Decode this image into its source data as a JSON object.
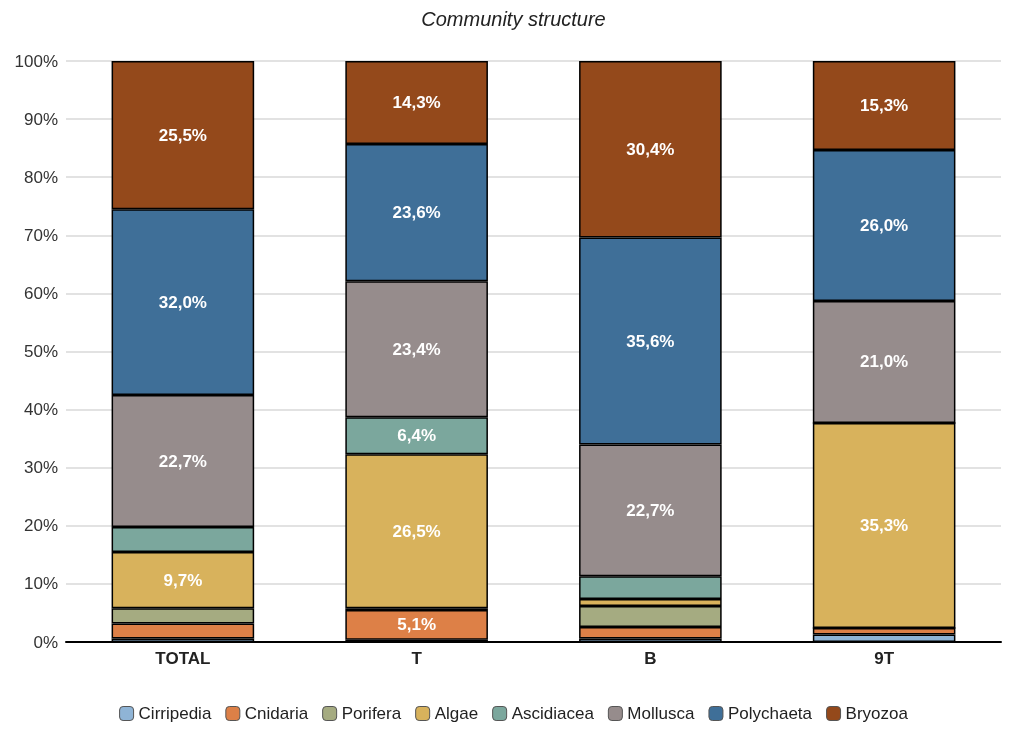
{
  "chart_data": {
    "type": "bar",
    "title": "Community structure",
    "stacked": true,
    "categories": [
      "TOTAL",
      "T",
      "B",
      "9T"
    ],
    "series": [
      {
        "name": "Cirripedia",
        "color": "#8fb4d6",
        "values": [
          0.6,
          0.4,
          0.6,
          1.3
        ],
        "value_labels": [
          null,
          null,
          null,
          null
        ]
      },
      {
        "name": "Cnidaria",
        "color": "#dd8047",
        "values": [
          2.6,
          5.1,
          2.0,
          1.1
        ],
        "value_labels": [
          null,
          "5,1%",
          null,
          null
        ]
      },
      {
        "name": "Porifera",
        "color": "#a5ab81",
        "values": [
          2.6,
          0.3,
          3.6,
          0
        ],
        "value_labels": [
          null,
          null,
          null,
          null
        ]
      },
      {
        "name": "Algae",
        "color": "#d8b25c",
        "values": [
          9.7,
          26.5,
          1.2,
          35.3
        ],
        "value_labels": [
          "9,7%",
          "26,5%",
          null,
          "35,3%"
        ]
      },
      {
        "name": "Ascidiacea",
        "color": "#7ba79d",
        "values": [
          4.3,
          6.4,
          3.9,
          0
        ],
        "value_labels": [
          null,
          "6,4%",
          null,
          null
        ]
      },
      {
        "name": "Mollusca",
        "color": "#968c8c",
        "values": [
          22.7,
          23.4,
          22.7,
          21.0
        ],
        "value_labels": [
          "22,7%",
          "23,4%",
          "22,7%",
          "21,0%"
        ]
      },
      {
        "name": "Polychaeta",
        "color": "#3f6f98",
        "values": [
          32.0,
          23.6,
          35.6,
          26.0
        ],
        "value_labels": [
          "32,0%",
          "23,6%",
          "35,6%",
          "26,0%"
        ]
      },
      {
        "name": "Bryozoa",
        "color": "#94491b",
        "values": [
          25.5,
          14.3,
          30.4,
          15.3
        ],
        "value_labels": [
          "25,5%",
          "14,3%",
          "30,4%",
          "15,3%"
        ]
      }
    ],
    "ylim": [
      0,
      100
    ],
    "yticks": [
      {
        "value": 0,
        "label": "0%"
      },
      {
        "value": 10,
        "label": "10%"
      },
      {
        "value": 20,
        "label": "20%"
      },
      {
        "value": 30,
        "label": "30%"
      },
      {
        "value": 40,
        "label": "40%"
      },
      {
        "value": 50,
        "label": "50%"
      },
      {
        "value": 60,
        "label": "60%"
      },
      {
        "value": 70,
        "label": "70%"
      },
      {
        "value": 80,
        "label": "80%"
      },
      {
        "value": 90,
        "label": "90%"
      },
      {
        "value": 100,
        "label": "100%"
      }
    ],
    "grid": "y",
    "legend": "bottom"
  }
}
